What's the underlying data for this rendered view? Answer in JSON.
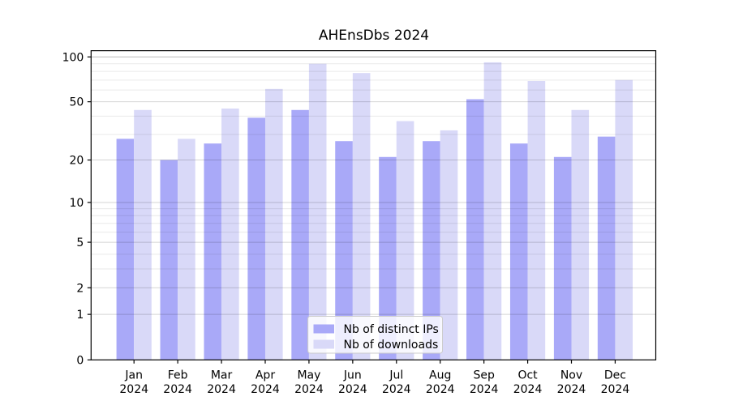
{
  "chart_data": {
    "type": "bar",
    "title": "AHEnsDbs 2024",
    "categories": [
      "Jan",
      "Feb",
      "Mar",
      "Apr",
      "May",
      "Jun",
      "Jul",
      "Aug",
      "Sep",
      "Oct",
      "Nov",
      "Dec"
    ],
    "x_tick_second_line": "2024",
    "series": [
      {
        "name": "Nb of distinct IPs",
        "color": "#a9a9f8",
        "values": [
          28,
          20,
          26,
          39,
          44,
          27,
          21,
          27,
          52,
          26,
          21,
          29
        ]
      },
      {
        "name": "Nb of downloads",
        "color": "#d9d9f8",
        "values": [
          44,
          28,
          45,
          61,
          90,
          78,
          37,
          32,
          92,
          69,
          44,
          70
        ]
      }
    ],
    "xlabel": "",
    "ylabel": "",
    "yscale": "log1p",
    "ylim": [
      0,
      110
    ],
    "y_major_ticks": [
      0,
      1,
      2,
      5,
      10,
      20,
      50,
      100
    ],
    "y_minor_ticks": [
      3,
      4,
      6,
      7,
      8,
      9,
      30,
      40,
      60,
      70,
      80,
      90
    ],
    "grid": true,
    "legend_position": "lower center",
    "colors": {
      "axis": "#000000",
      "grid_major": "#d2d2d2",
      "grid_major_top": "#bdbdbd",
      "grid_minor": "#ebebeb",
      "legend_border": "#cccccc",
      "legend_background": "#ffffff",
      "text": "#000000"
    }
  }
}
